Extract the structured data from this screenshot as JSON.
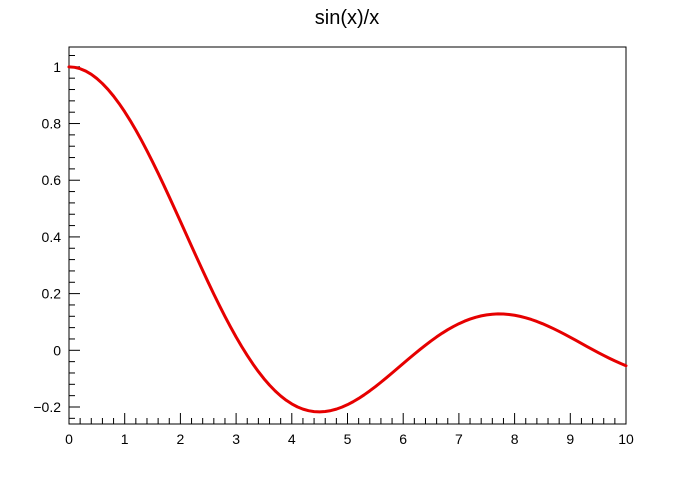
{
  "chart_data": {
    "type": "line",
    "title": "sin(x)/x",
    "xlabel": "",
    "ylabel": "",
    "xlim": [
      0,
      10
    ],
    "ylim": [
      -0.26,
      1.07
    ],
    "x_ticks": [
      "0",
      "1",
      "2",
      "3",
      "4",
      "5",
      "6",
      "7",
      "8",
      "9",
      "10"
    ],
    "y_ticks": [
      "−0.2",
      "0",
      "0.2",
      "0.4",
      "0.6",
      "0.8",
      "1"
    ],
    "grid": false,
    "series": [
      {
        "color": "#e60000",
        "function": "sin(x)/x",
        "samples": 100
      }
    ]
  }
}
